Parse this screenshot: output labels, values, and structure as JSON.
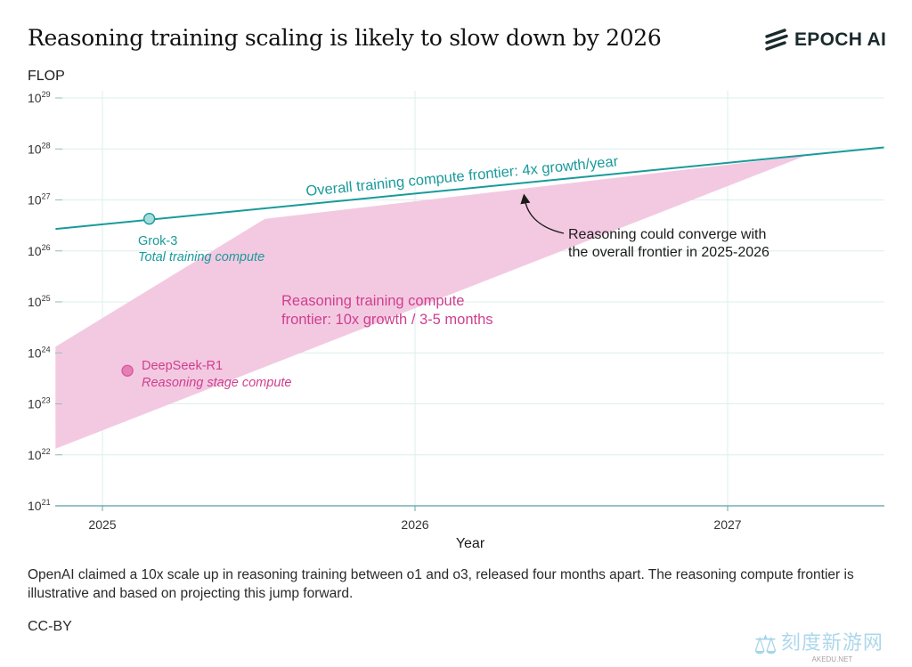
{
  "header": {
    "title": "Reasoning training scaling is likely to slow down by 2026",
    "logo_text": "EPOCH AI"
  },
  "chart_data": {
    "type": "line",
    "title": "Reasoning training scaling is likely to slow down by 2026",
    "ylabel": "FLOP",
    "xlabel": "Year",
    "yscale": "log10",
    "xlim": [
      2024.85,
      2027.5
    ],
    "ylim_exponent": [
      21,
      29
    ],
    "x_ticks": [
      {
        "value": 2025,
        "label": "2025"
      },
      {
        "value": 2026,
        "label": "2026"
      },
      {
        "value": 2027,
        "label": "2027"
      }
    ],
    "y_ticks": [
      {
        "exp": 29,
        "label_base": "10",
        "label_exp": "29"
      },
      {
        "exp": 28,
        "label_base": "10",
        "label_exp": "28"
      },
      {
        "exp": 27,
        "label_base": "10",
        "label_exp": "27"
      },
      {
        "exp": 26,
        "label_base": "10",
        "label_exp": "26"
      },
      {
        "exp": 25,
        "label_base": "10",
        "label_exp": "25"
      },
      {
        "exp": 24,
        "label_base": "10",
        "label_exp": "24"
      },
      {
        "exp": 23,
        "label_base": "10",
        "label_exp": "23"
      },
      {
        "exp": 22,
        "label_base": "10",
        "label_exp": "22"
      },
      {
        "exp": 21,
        "label_base": "10",
        "label_exp": "21"
      }
    ],
    "overall_frontier": {
      "label": "Overall training compute frontier: 4x growth/year",
      "color": "#1a9a9a",
      "points": [
        [
          2024.85,
          26.43
        ],
        [
          2027.5,
          28.03
        ]
      ]
    },
    "reasoning_band": {
      "label_line1": "Reasoning training compute",
      "label_line2": "frontier: 10x growth / 3-5 months",
      "color": "#f3c9e2",
      "label_color": "#cf3f8e",
      "upper": [
        [
          2024.85,
          24.12
        ],
        [
          2025.52,
          26.63
        ],
        [
          2027.25,
          27.87
        ]
      ],
      "lower": [
        [
          2027.25,
          27.87
        ],
        [
          2024.85,
          22.12
        ]
      ]
    },
    "points": [
      {
        "name": "Grok-3",
        "sublabel": "Total training compute",
        "x": 2025.15,
        "exp": 26.63,
        "color": "#1a9a9a"
      },
      {
        "name": "DeepSeek-R1",
        "sublabel": "Reasoning stage compute",
        "x": 2025.08,
        "exp": 23.65,
        "color": "#e57fb6"
      }
    ],
    "annotation": {
      "line1": "Reasoning could converge with",
      "line2": "the overall frontier in 2025-2026",
      "target_x": 2026.35,
      "target_exp": 27.15
    }
  },
  "footer": {
    "caption": "OpenAI claimed a 10x scale up in reasoning training between o1 and o3, released four months apart. The reasoning compute frontier is illustrative and based on projecting this jump forward.",
    "license": "CC-BY"
  },
  "watermark": {
    "cn_text": "刻度新游网",
    "url_text": "AKEDU.NET"
  }
}
